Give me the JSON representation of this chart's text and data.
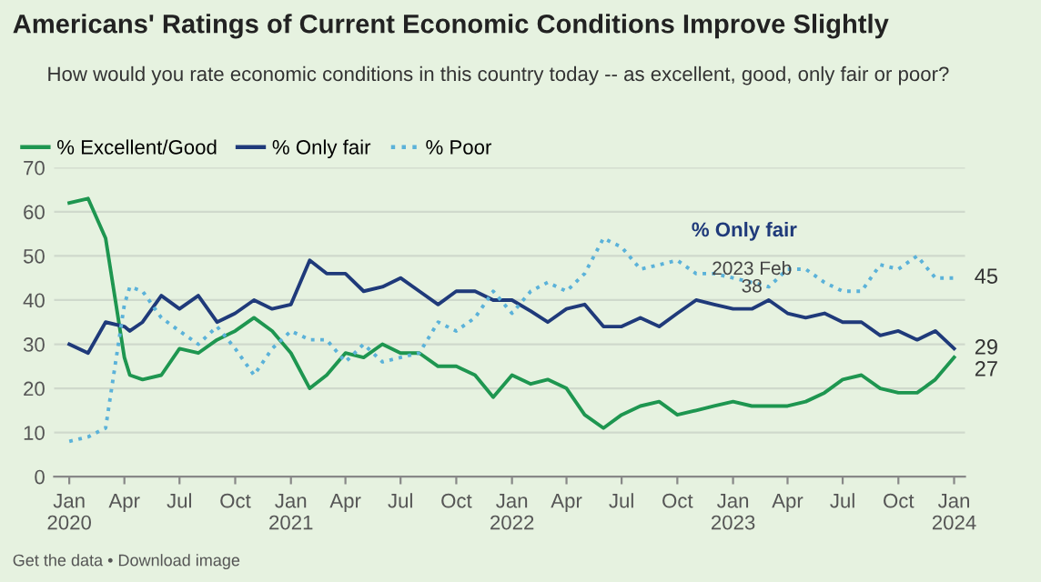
{
  "chart_data": {
    "type": "line",
    "title": "Americans' Ratings of Current Economic Conditions Improve Slightly",
    "subtitle": "How would you rate economic conditions in this country today -- as excellent, good, only fair or poor?",
    "x": [
      "2020-01",
      "2020-02",
      "2020-03",
      "2020-04",
      "2020-04-10",
      "2020-05",
      "2020-06",
      "2020-07",
      "2020-08",
      "2020-09",
      "2020-10",
      "2020-11",
      "2020-12",
      "2021-01",
      "2021-02",
      "2021-03",
      "2021-04",
      "2021-05",
      "2021-06",
      "2021-07",
      "2021-08",
      "2021-09",
      "2021-10",
      "2021-11",
      "2021-12",
      "2022-01",
      "2022-02",
      "2022-03",
      "2022-04",
      "2022-05",
      "2022-06",
      "2022-07",
      "2022-08",
      "2022-09",
      "2022-10",
      "2022-11",
      "2022-12",
      "2023-01",
      "2023-02",
      "2023-03",
      "2023-04",
      "2023-05",
      "2023-06",
      "2023-07",
      "2023-08",
      "2023-09",
      "2023-10",
      "2023-11",
      "2023-12",
      "2024-01"
    ],
    "series": [
      {
        "name": "% Excellent/Good",
        "color": "#1e9650",
        "line_style": "solid",
        "values": [
          62,
          63,
          54,
          27,
          23,
          22,
          23,
          29,
          28,
          31,
          33,
          36,
          33,
          28,
          20,
          23,
          28,
          27,
          30,
          28,
          28,
          25,
          25,
          23,
          18,
          23,
          21,
          22,
          20,
          14,
          11,
          14,
          16,
          17,
          14,
          15,
          16,
          17,
          16,
          16,
          16,
          17,
          19,
          22,
          23,
          20,
          19,
          19,
          22,
          27
        ],
        "value_labels": [
          null,
          null,
          null,
          null,
          null,
          null,
          null,
          null,
          null,
          null,
          null,
          null,
          null,
          null,
          null,
          null,
          null,
          null,
          null,
          null,
          null,
          null,
          null,
          null,
          null,
          null,
          null,
          null,
          null,
          null,
          null,
          null,
          null,
          null,
          null,
          null,
          null,
          null,
          null,
          null,
          null,
          null,
          null,
          null,
          null,
          null,
          null,
          null,
          null,
          "27"
        ]
      },
      {
        "name": "% Only fair",
        "color": "#1f3a7a",
        "line_style": "solid",
        "values": [
          30,
          28,
          35,
          34,
          33,
          35,
          41,
          38,
          41,
          35,
          37,
          40,
          38,
          39,
          49,
          46,
          46,
          42,
          43,
          45,
          42,
          39,
          42,
          42,
          40,
          40,
          37.5,
          35,
          38,
          39,
          34,
          34,
          36,
          34,
          37,
          40,
          39,
          38,
          38,
          40,
          37,
          36,
          37,
          35,
          35,
          32,
          33,
          31,
          33,
          29
        ],
        "value_labels": [
          null,
          null,
          null,
          null,
          null,
          null,
          null,
          null,
          null,
          null,
          null,
          null,
          null,
          null,
          null,
          null,
          null,
          null,
          null,
          null,
          null,
          null,
          null,
          null,
          null,
          null,
          null,
          null,
          null,
          null,
          null,
          null,
          null,
          null,
          null,
          null,
          null,
          null,
          null,
          null,
          null,
          null,
          null,
          null,
          null,
          null,
          null,
          null,
          null,
          "29"
        ]
      },
      {
        "name": "% Poor",
        "color": "#5bb2d9",
        "line_style": "dotted",
        "values": [
          8,
          9,
          11,
          39,
          43,
          42,
          36,
          33,
          30,
          34,
          29,
          23,
          29,
          33,
          31,
          31,
          26,
          30,
          26,
          27,
          28,
          35,
          33,
          36,
          42,
          37,
          42,
          44,
          42,
          46,
          54,
          52,
          47,
          48,
          49,
          46,
          46,
          45,
          44,
          43,
          47,
          47,
          44,
          42,
          42,
          48,
          47,
          50,
          45,
          45
        ],
        "value_labels": [
          null,
          null,
          null,
          null,
          null,
          null,
          null,
          null,
          null,
          null,
          null,
          null,
          null,
          null,
          null,
          null,
          null,
          null,
          null,
          null,
          null,
          null,
          null,
          null,
          null,
          null,
          null,
          null,
          null,
          null,
          null,
          null,
          null,
          null,
          null,
          null,
          null,
          null,
          null,
          null,
          null,
          null,
          null,
          null,
          null,
          null,
          null,
          null,
          null,
          "45"
        ]
      }
    ],
    "xlim": [
      "2019-12-07",
      "2024-01-19"
    ],
    "ylim": [
      0,
      70
    ],
    "xticks": [
      {
        "value": "2020-01",
        "label": "Jan\n2020"
      },
      {
        "value": "2020-04",
        "label": "Apr"
      },
      {
        "value": "2020-07",
        "label": "Jul"
      },
      {
        "value": "2020-10",
        "label": "Oct"
      },
      {
        "value": "2021-01",
        "label": "Jan\n2021"
      },
      {
        "value": "2021-04",
        "label": "Apr"
      },
      {
        "value": "2021-07",
        "label": "Jul"
      },
      {
        "value": "2021-10",
        "label": "Oct"
      },
      {
        "value": "2022-01",
        "label": "Jan\n2022"
      },
      {
        "value": "2022-04",
        "label": "Apr"
      },
      {
        "value": "2022-07",
        "label": "Jul"
      },
      {
        "value": "2022-10",
        "label": "Oct"
      },
      {
        "value": "2023-01",
        "label": "Jan\n2023"
      },
      {
        "value": "2023-04",
        "label": "Apr"
      },
      {
        "value": "2023-07",
        "label": "Jul"
      },
      {
        "value": "2023-10",
        "label": "Oct"
      },
      {
        "value": "2024-01",
        "label": "Jan\n2024"
      }
    ],
    "yticks": [
      0,
      10,
      20,
      30,
      40,
      50,
      60,
      70
    ],
    "grid": "y",
    "legend": "top left",
    "annotations": [
      {
        "text": "% Only fair\n2023 Feb\n38",
        "x": "2023-02",
        "y": 38
      },
      "Get the data • Download image"
    ]
  }
}
